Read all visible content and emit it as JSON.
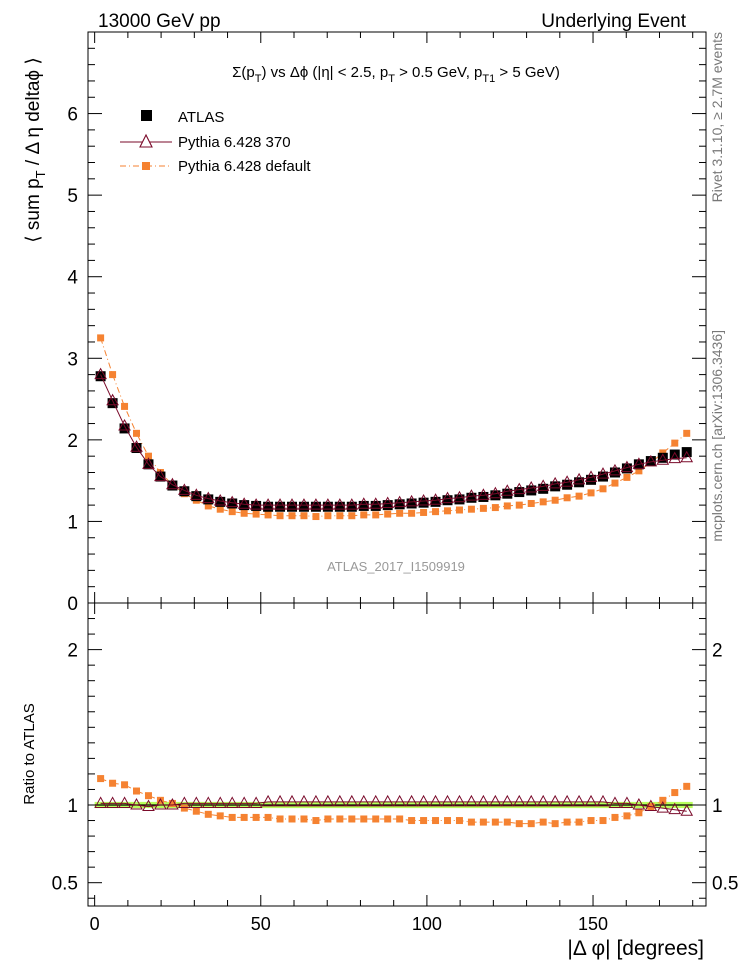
{
  "header": {
    "left": "13000 GeV pp",
    "right": "Underlying Event"
  },
  "side_labels": {
    "rivet": "Rivet 3.1.10, ≥ 2.7M events",
    "mcplots": "mcplots.cern.ch [arXiv:1306.3436]"
  },
  "colors": {
    "atlas": "#000000",
    "pythia370": "#7a0a2a",
    "pythia_default": "#f58231",
    "band": "#b8ff5c"
  },
  "chart_data": [
    {
      "type": "scatter",
      "title": "Σ(p_T) vs Δφ (|η| < 2.5, p_T > 0.5 GeV, p_T1 > 5 GeV)",
      "ylabel": "⟨ sum p_T / Δ η deltaφ ⟩",
      "xlabel": "",
      "xlim": [
        -2,
        184
      ],
      "ylim": [
        0,
        7
      ],
      "yticks": [
        0,
        1,
        2,
        3,
        4,
        5,
        6
      ],
      "watermark": "ATLAS_2017_I1509919",
      "legend_position": "top-left",
      "x": [
        1.8,
        5.4,
        9,
        12.6,
        16.2,
        19.8,
        23.4,
        27,
        30.6,
        34.2,
        37.8,
        41.4,
        45,
        48.6,
        52.2,
        55.8,
        59.4,
        63,
        66.6,
        70.2,
        73.8,
        77.4,
        81,
        84.6,
        88.2,
        91.8,
        95.4,
        99,
        102.6,
        106.2,
        109.8,
        113.4,
        117,
        120.6,
        124.2,
        127.8,
        131.4,
        135,
        138.6,
        142.2,
        145.8,
        149.4,
        153,
        156.6,
        160.2,
        163.8,
        167.4,
        171,
        174.6,
        178.2
      ],
      "series": [
        {
          "name": "ATLAS",
          "style": "square",
          "values": [
            2.78,
            2.45,
            2.14,
            1.9,
            1.7,
            1.55,
            1.44,
            1.37,
            1.31,
            1.27,
            1.24,
            1.22,
            1.2,
            1.19,
            1.18,
            1.18,
            1.18,
            1.18,
            1.18,
            1.18,
            1.18,
            1.18,
            1.19,
            1.19,
            1.2,
            1.21,
            1.22,
            1.23,
            1.24,
            1.26,
            1.27,
            1.29,
            1.3,
            1.32,
            1.34,
            1.36,
            1.38,
            1.4,
            1.43,
            1.45,
            1.48,
            1.51,
            1.55,
            1.6,
            1.65,
            1.7,
            1.74,
            1.78,
            1.82,
            1.85
          ]
        },
        {
          "name": "Pythia 6.428 370",
          "style": "triangle-line",
          "values": [
            2.8,
            2.48,
            2.17,
            1.91,
            1.7,
            1.55,
            1.45,
            1.38,
            1.32,
            1.28,
            1.25,
            1.23,
            1.21,
            1.2,
            1.2,
            1.2,
            1.2,
            1.2,
            1.2,
            1.2,
            1.2,
            1.2,
            1.21,
            1.21,
            1.22,
            1.23,
            1.24,
            1.25,
            1.26,
            1.28,
            1.29,
            1.31,
            1.32,
            1.34,
            1.37,
            1.39,
            1.41,
            1.43,
            1.46,
            1.48,
            1.51,
            1.54,
            1.58,
            1.62,
            1.66,
            1.7,
            1.73,
            1.75,
            1.77,
            1.78
          ]
        },
        {
          "name": "Pythia 6.428 default",
          "style": "square-dashdot",
          "values": [
            3.25,
            2.8,
            2.41,
            2.08,
            1.8,
            1.6,
            1.45,
            1.34,
            1.26,
            1.19,
            1.15,
            1.12,
            1.1,
            1.09,
            1.08,
            1.07,
            1.07,
            1.07,
            1.06,
            1.07,
            1.07,
            1.07,
            1.08,
            1.08,
            1.09,
            1.1,
            1.1,
            1.11,
            1.12,
            1.13,
            1.14,
            1.15,
            1.16,
            1.17,
            1.19,
            1.2,
            1.22,
            1.24,
            1.26,
            1.29,
            1.31,
            1.35,
            1.4,
            1.47,
            1.54,
            1.62,
            1.72,
            1.84,
            1.96,
            2.08
          ]
        }
      ]
    },
    {
      "type": "scatter",
      "ylabel": "Ratio to ATLAS",
      "xlabel": "|Δ φ| [degrees]",
      "xlim": [
        -2,
        184
      ],
      "ylim": [
        0.35,
        2.3
      ],
      "yticks": [
        0.5,
        1,
        2
      ],
      "xticks": [
        0,
        50,
        100,
        150
      ],
      "band": {
        "lower": 0.98,
        "upper": 1.02
      },
      "series": [
        {
          "name": "Pythia 6.428 370",
          "values": [
            1.01,
            1.01,
            1.01,
            1.0,
            0.99,
            1.0,
            1.0,
            1.01,
            1.01,
            1.01,
            1.01,
            1.01,
            1.01,
            1.01,
            1.02,
            1.02,
            1.02,
            1.02,
            1.02,
            1.02,
            1.02,
            1.02,
            1.02,
            1.02,
            1.02,
            1.02,
            1.02,
            1.02,
            1.02,
            1.02,
            1.02,
            1.02,
            1.02,
            1.02,
            1.02,
            1.02,
            1.02,
            1.02,
            1.02,
            1.02,
            1.02,
            1.02,
            1.02,
            1.01,
            1.01,
            1.0,
            0.99,
            0.98,
            0.97,
            0.96
          ]
        },
        {
          "name": "Pythia 6.428 default",
          "values": [
            1.17,
            1.14,
            1.13,
            1.09,
            1.06,
            1.03,
            1.01,
            0.98,
            0.96,
            0.94,
            0.93,
            0.92,
            0.92,
            0.92,
            0.92,
            0.91,
            0.91,
            0.91,
            0.9,
            0.91,
            0.91,
            0.91,
            0.91,
            0.91,
            0.91,
            0.91,
            0.9,
            0.9,
            0.9,
            0.9,
            0.9,
            0.89,
            0.89,
            0.89,
            0.89,
            0.88,
            0.88,
            0.89,
            0.88,
            0.89,
            0.89,
            0.9,
            0.9,
            0.92,
            0.93,
            0.95,
            0.99,
            1.03,
            1.08,
            1.12
          ]
        }
      ]
    }
  ]
}
